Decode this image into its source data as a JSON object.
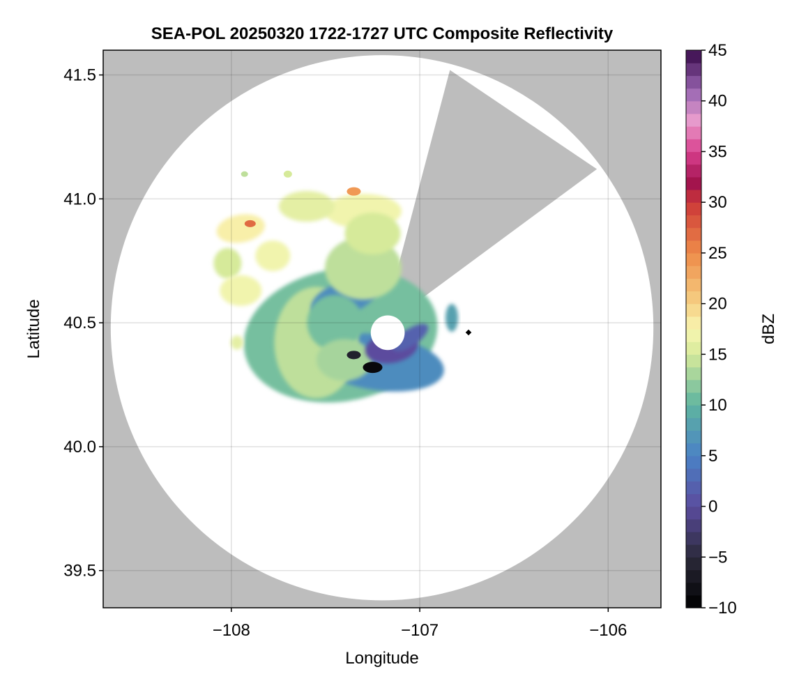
{
  "chart_data": {
    "type": "heatmap",
    "title": "SEA-POL 20250320 1722-1727 UTC Composite Reflectivity",
    "xlabel": "Longitude",
    "ylabel": "Latitude",
    "xlim": [
      -108.68,
      -105.72
    ],
    "ylim": [
      39.35,
      41.6
    ],
    "x_ticks": [
      -108,
      -107,
      -106
    ],
    "x_tick_labels": [
      "−108",
      "−107",
      "−106"
    ],
    "y_ticks": [
      39.5,
      40.0,
      40.5,
      41.0,
      41.5
    ],
    "y_tick_labels": [
      "39.5",
      "40.0",
      "40.5",
      "41.0",
      "41.5"
    ],
    "grid": true,
    "background_color": "#bdbdbd",
    "radar": {
      "center_lon": -107.2,
      "center_lat": 40.48,
      "max_range_lon_deg": 1.44,
      "max_range_lat_deg": 1.1,
      "blanked_sector_lon_lat": [
        [
          -107.2,
          40.48
        ],
        [
          -106.84,
          41.52
        ],
        [
          -106.06,
          41.12
        ]
      ],
      "inner_gap_lon_deg": 0.09,
      "inner_gap_lat_deg": 0.07
    },
    "reflectivity_regions": [
      {
        "region": "northwest cells",
        "lon": -107.95,
        "lat": 40.88,
        "dbz": 18
      },
      {
        "region": "northwest core",
        "lon": -107.9,
        "lat": 40.9,
        "dbz": 27
      },
      {
        "region": "north cells",
        "lon": -107.3,
        "lat": 40.95,
        "dbz": 17
      },
      {
        "region": "north core",
        "lon": -107.35,
        "lat": 41.03,
        "dbz": 24
      },
      {
        "region": "west cells",
        "lon": -107.95,
        "lat": 40.63,
        "dbz": 17
      },
      {
        "region": "central area",
        "lon": -107.4,
        "lat": 40.55,
        "dbz": 9
      },
      {
        "region": "central south",
        "lon": -107.4,
        "lat": 40.35,
        "dbz": 13
      },
      {
        "region": "near radar",
        "lon": -107.15,
        "lat": 40.4,
        "dbz": 0
      },
      {
        "region": "south minimum",
        "lon": -107.25,
        "lat": 40.32,
        "dbz": -9
      },
      {
        "region": "east cell",
        "lon": -106.83,
        "lat": 40.52,
        "dbz": 8
      }
    ],
    "colorbar": {
      "label": "dBZ",
      "min": -10,
      "max": 45,
      "ticks": [
        -10,
        -5,
        0,
        5,
        10,
        15,
        20,
        25,
        30,
        35,
        40,
        45
      ],
      "tick_labels": [
        "−10",
        "−5",
        "0",
        "5",
        "10",
        "15",
        "20",
        "25",
        "30",
        "35",
        "40",
        "45"
      ],
      "colormap": "Spectral-Magenta",
      "color_stops": [
        {
          "value": -10,
          "color": "#000000"
        },
        {
          "value": -5,
          "color": "#2b2a3a"
        },
        {
          "value": 0,
          "color": "#5b4c9e"
        },
        {
          "value": 5,
          "color": "#4a82c6"
        },
        {
          "value": 10,
          "color": "#5eb4a0"
        },
        {
          "value": 15,
          "color": "#d6ea9a"
        },
        {
          "value": 17.5,
          "color": "#f8f6b2"
        },
        {
          "value": 20,
          "color": "#f6d184"
        },
        {
          "value": 25,
          "color": "#ee8b49"
        },
        {
          "value": 30,
          "color": "#cc3838"
        },
        {
          "value": 32,
          "color": "#a0124e"
        },
        {
          "value": 35,
          "color": "#d9408e"
        },
        {
          "value": 38,
          "color": "#e99ccd"
        },
        {
          "value": 41,
          "color": "#9a67b3"
        },
        {
          "value": 45,
          "color": "#38094a"
        }
      ]
    }
  }
}
